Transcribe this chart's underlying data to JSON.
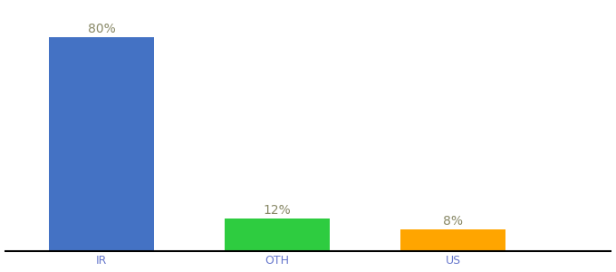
{
  "categories": [
    "IR",
    "OTH",
    "US"
  ],
  "values": [
    80,
    12,
    8
  ],
  "labels": [
    "80%",
    "12%",
    "8%"
  ],
  "bar_colors": [
    "#4472C4",
    "#2ECC40",
    "#FFA500"
  ],
  "background_color": "#ffffff",
  "label_color": "#888866",
  "tick_color": "#6677CC",
  "ylim": [
    0,
    92
  ],
  "bar_width": 0.6,
  "label_fontsize": 10,
  "tick_fontsize": 9
}
